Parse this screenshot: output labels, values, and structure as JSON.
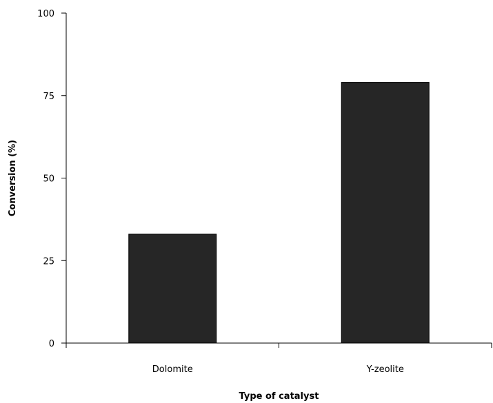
{
  "chart_data": {
    "type": "bar",
    "title": "",
    "xlabel": "Type of catalyst",
    "ylabel": "Conversion (%)",
    "categories": [
      "Dolomite",
      "Y-zeolite"
    ],
    "values": [
      33,
      79
    ],
    "ylim": [
      0,
      100
    ],
    "yticks": [
      0,
      25,
      50,
      75,
      100
    ],
    "grid": false,
    "legend": "none",
    "bar_color": "#262626",
    "axis_color": "#000000"
  }
}
